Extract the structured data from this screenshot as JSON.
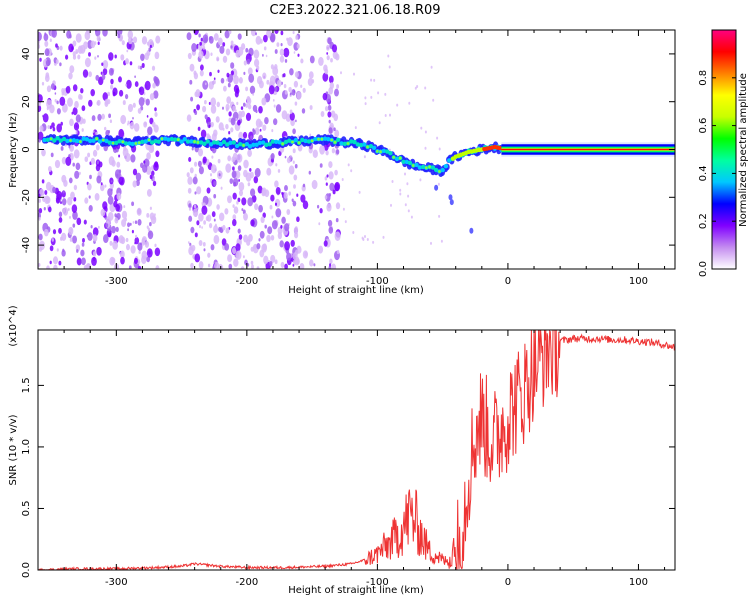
{
  "title": "C2E3.2022.321.06.18.R09",
  "chart_data": [
    {
      "type": "heatmap",
      "xlabel": "Height of straight line (km)",
      "ylabel": "Frequency (Hz)",
      "xlim": [
        -360,
        128
      ],
      "ylim": [
        -50,
        50
      ],
      "xticks": [
        -300,
        -200,
        -100,
        0,
        100
      ],
      "xtick_labels": [
        "-300",
        "-200",
        "-100",
        "0",
        "100"
      ],
      "yticks": [
        -40,
        -20,
        0,
        20,
        40
      ],
      "ytick_labels": [
        "-40",
        "-20",
        "0",
        "20",
        "40"
      ],
      "grid": false,
      "colorbar": {
        "label": "Normalized spectral amplitude",
        "range": [
          0,
          1
        ],
        "ticks": [
          0.0,
          0.2,
          0.4,
          0.6,
          0.8
        ],
        "tick_labels": [
          "0.0",
          "0.2",
          "0.4",
          "0.6",
          "0.8"
        ],
        "colormap": [
          "#ffffff",
          "#c48cf0",
          "#8000ff",
          "#0000ff",
          "#00c8ff",
          "#00ffa0",
          "#00ff00",
          "#c8ff00",
          "#ffff00",
          "#ff8000",
          "#ff0000",
          "#ff0080"
        ]
      },
      "signal_track": {
        "x": [
          -350,
          -320,
          -290,
          -260,
          -230,
          -200,
          -170,
          -140,
          -125,
          -110,
          -100,
          -90,
          -80,
          -70,
          -60,
          -50,
          -45,
          -40,
          -30,
          -20,
          -10,
          0,
          20,
          60,
          100,
          128
        ],
        "y": [
          4,
          4,
          3,
          4,
          3,
          2,
          3,
          4,
          3,
          2,
          0,
          -2,
          -5,
          -7,
          -8,
          -9,
          -5,
          -3,
          -1,
          0,
          1,
          0,
          0,
          0,
          0,
          0
        ]
      }
    },
    {
      "type": "line",
      "xlabel": "Height of straight line (km)",
      "ylabel": "SNR (10 * v/v)",
      "y_multiplier": "(x10^4)",
      "xlim": [
        -360,
        128
      ],
      "ylim": [
        0,
        1.95
      ],
      "xticks": [
        -300,
        -200,
        -100,
        0,
        100
      ],
      "xtick_labels": [
        "-300",
        "-200",
        "-100",
        "0",
        "100"
      ],
      "yticks": [
        0.0,
        0.5,
        1.0,
        1.5
      ],
      "ytick_labels": [
        "0.0",
        "0.5",
        "1.0",
        "1.5"
      ],
      "grid": false,
      "series": [
        {
          "color": "#ee3333",
          "x": [
            -360,
            -330,
            -300,
            -270,
            -250,
            -240,
            -220,
            -200,
            -170,
            -140,
            -120,
            -110,
            -100,
            -95,
            -90,
            -85,
            -80,
            -75,
            -70,
            -65,
            -60,
            -55,
            -50,
            -45,
            -40,
            -35,
            -30,
            -25,
            -20,
            -15,
            -10,
            -5,
            0,
            5,
            10,
            20,
            30,
            40,
            50,
            60,
            70,
            80,
            90,
            100,
            110,
            120,
            128
          ],
          "y": [
            0.0,
            0.01,
            0.01,
            0.02,
            0.03,
            0.05,
            0.03,
            0.02,
            0.02,
            0.03,
            0.05,
            0.08,
            0.13,
            0.18,
            0.22,
            0.28,
            0.35,
            0.45,
            0.38,
            0.25,
            0.15,
            0.12,
            0.08,
            0.06,
            0.1,
            0.35,
            0.8,
            1.1,
            1.25,
            1.1,
            1.05,
            1.15,
            1.25,
            1.35,
            1.4,
            1.65,
            1.8,
            1.86,
            1.88,
            1.88,
            1.88,
            1.87,
            1.87,
            1.86,
            1.85,
            1.83,
            1.81
          ]
        }
      ]
    }
  ]
}
